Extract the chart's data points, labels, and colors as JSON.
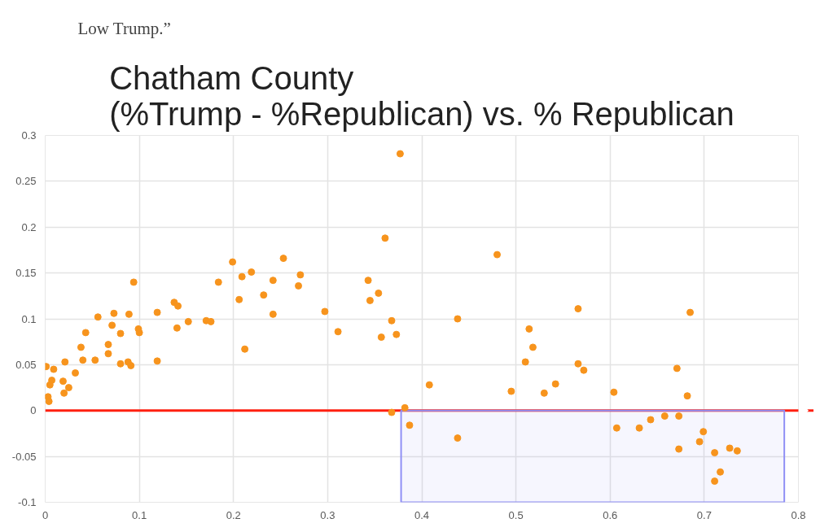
{
  "chart_data": {
    "type": "scatter",
    "title": "Chatham County\n(%Trump - %Republican) vs. % Republican",
    "annotations": [
      "Low Trump.”"
    ],
    "series": [
      {
        "color": "#f7941d",
        "x": [
          0.001,
          0.003,
          0.004,
          0.005,
          0.007,
          0.009,
          0.019,
          0.02,
          0.021,
          0.025,
          0.032,
          0.038,
          0.04,
          0.043,
          0.053,
          0.056,
          0.067,
          0.067,
          0.071,
          0.073,
          0.08,
          0.08,
          0.088,
          0.089,
          0.091,
          0.094,
          0.099,
          0.1,
          0.119,
          0.119,
          0.137,
          0.141,
          0.14,
          0.152,
          0.171,
          0.176,
          0.184,
          0.199,
          0.206,
          0.209,
          0.212,
          0.219,
          0.232,
          0.242,
          0.242,
          0.253,
          0.271,
          0.269,
          0.297,
          0.311,
          0.343,
          0.345,
          0.354,
          0.361,
          0.377,
          0.357,
          0.368,
          0.373,
          0.368,
          0.382,
          0.387,
          0.408,
          0.438,
          0.438,
          0.48,
          0.495,
          0.51,
          0.514,
          0.518,
          0.566,
          0.566,
          0.572,
          0.53,
          0.542,
          0.604,
          0.607,
          0.631,
          0.643,
          0.658,
          0.673,
          0.671,
          0.685,
          0.682,
          0.673,
          0.699,
          0.695,
          0.711,
          0.727,
          0.735,
          0.717,
          0.711
        ],
        "values": [
          0.048,
          0.015,
          0.01,
          0.028,
          0.033,
          0.045,
          0.032,
          0.019,
          0.053,
          0.025,
          0.041,
          0.069,
          0.055,
          0.085,
          0.055,
          0.102,
          0.072,
          0.062,
          0.093,
          0.106,
          0.084,
          0.051,
          0.053,
          0.105,
          0.049,
          0.14,
          0.089,
          0.085,
          0.107,
          0.054,
          0.118,
          0.114,
          0.09,
          0.097,
          0.098,
          0.097,
          0.14,
          0.162,
          0.121,
          0.146,
          0.067,
          0.151,
          0.126,
          0.142,
          0.105,
          0.166,
          0.148,
          0.136,
          0.108,
          0.086,
          0.142,
          0.12,
          0.128,
          0.188,
          0.28,
          0.08,
          0.098,
          0.083,
          -0.002,
          0.003,
          -0.016,
          0.028,
          0.1,
          -0.03,
          0.17,
          0.021,
          0.053,
          0.089,
          0.069,
          0.111,
          0.051,
          0.044,
          0.019,
          0.029,
          0.02,
          -0.019,
          -0.019,
          -0.01,
          -0.006,
          -0.006,
          0.046,
          0.107,
          0.016,
          -0.042,
          -0.023,
          -0.034,
          -0.046,
          -0.041,
          -0.044,
          -0.067,
          -0.077
        ]
      }
    ],
    "xlim": [
      0,
      0.8
    ],
    "xticks": [
      0,
      0.1,
      0.2,
      0.3,
      0.4,
      0.5,
      0.6,
      0.7,
      0.8
    ],
    "ylim": [
      -0.1,
      0.3
    ],
    "yticks": [
      -0.1,
      -0.05,
      0,
      0.05,
      0.1,
      0.15,
      0.2,
      0.25,
      0.3
    ],
    "grid": true,
    "marker": "circle",
    "ref_lines": [
      {
        "axis": "y",
        "value": 0,
        "label": null,
        "color": "#ff2010"
      }
    ],
    "bands": [
      {
        "axis": "x",
        "from": 0.378,
        "to": 0.785,
        "label": null,
        "color": "#8f8ff5"
      }
    ]
  }
}
